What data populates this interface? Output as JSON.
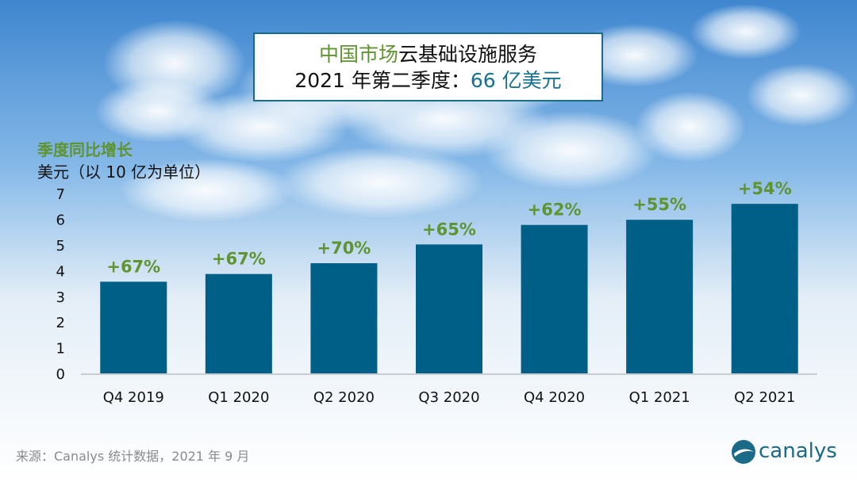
{
  "title": {
    "line1_green": "中国市场",
    "line1_rest": "云基础设施服务",
    "line2_prefix": "2021 年第二季度：",
    "line2_value": "66 亿美元"
  },
  "y_axis_caption": {
    "line1": "季度同比增长",
    "line2": "美元（以 10 亿为单位）"
  },
  "source": "来源：Canalys 统计数据，2021 年 9 月",
  "logo_text": "canalys",
  "colors": {
    "bar": "#005f86",
    "growth_label": "#5f9430",
    "title_border": "#1a6a8a"
  },
  "chart_data": {
    "type": "bar",
    "categories": [
      "Q4 2019",
      "Q1 2020",
      "Q2 2020",
      "Q3 2020",
      "Q4 2020",
      "Q1 2021",
      "Q2 2021"
    ],
    "values": [
      3.57,
      3.87,
      4.29,
      5.02,
      5.78,
      5.98,
      6.6
    ],
    "data_labels": [
      "+67%",
      "+67%",
      "+70%",
      "+65%",
      "+62%",
      "+55%",
      "+54%"
    ],
    "ylim": [
      0,
      7
    ],
    "yticks": [
      0,
      1,
      2,
      3,
      4,
      5,
      6,
      7
    ],
    "grid": false,
    "legend": "none"
  }
}
